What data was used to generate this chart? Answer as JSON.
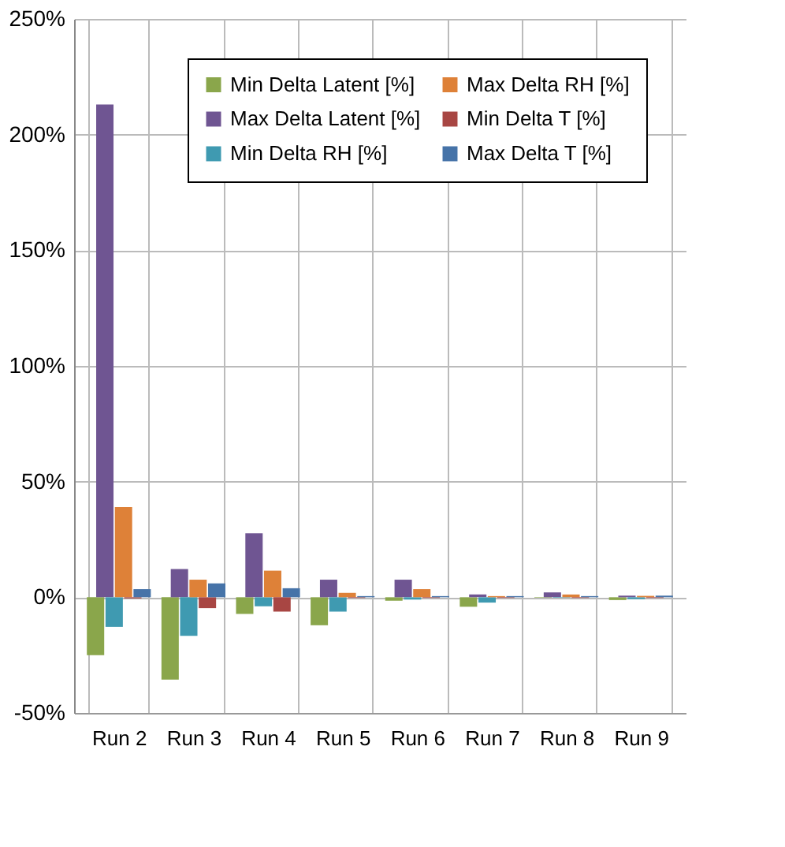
{
  "chart_data": {
    "type": "bar",
    "categories": [
      "Run 2",
      "Run 3",
      "Run 4",
      "Run 5",
      "Run 6",
      "Run 7",
      "Run 8",
      "Run 9"
    ],
    "series": [
      {
        "name": "Min Delta Latent [%]",
        "color": "#8aa64b",
        "values": [
          -25,
          -35.6,
          -7.2,
          -12.1,
          -1.5,
          -4.1,
          -0.2,
          -1.2
        ]
      },
      {
        "name": "Max Delta Latent [%]",
        "color": "#6f5592",
        "values": [
          213,
          12.2,
          27.6,
          7.6,
          7.6,
          1.2,
          2.1,
          0.7
        ]
      },
      {
        "name": "Min Delta RH [%]",
        "color": "#3f9ab1",
        "values": [
          -12.8,
          -16.7,
          -3.9,
          -6.2,
          -1,
          -2.3,
          -0.2,
          -0.8
        ]
      },
      {
        "name": "Max Delta RH [%]",
        "color": "#de8138",
        "values": [
          39,
          7.6,
          11.5,
          1.9,
          3.5,
          0.5,
          1.2,
          0.6
        ]
      },
      {
        "name": "Min Delta T [%]",
        "color": "#a84643",
        "values": [
          -0.5,
          -4.7,
          -6.2,
          -0.3,
          -0.3,
          -0.3,
          -0.3,
          -0.3
        ]
      },
      {
        "name": "Max Delta T [%]",
        "color": "#4673a8",
        "values": [
          3.5,
          6,
          3.9,
          0.5,
          0.5,
          0.5,
          0.5,
          0.7
        ]
      }
    ],
    "ylim": [
      -50,
      250
    ],
    "yticks": [
      {
        "value": -50,
        "label": "-50%"
      },
      {
        "value": 0,
        "label": "0%"
      },
      {
        "value": 50,
        "label": "50%"
      },
      {
        "value": 100,
        "label": "100%"
      },
      {
        "value": 150,
        "label": "150%"
      },
      {
        "value": 200,
        "label": "200%"
      },
      {
        "value": 250,
        "label": "250%"
      }
    ],
    "grid": true,
    "legend": "top right"
  }
}
